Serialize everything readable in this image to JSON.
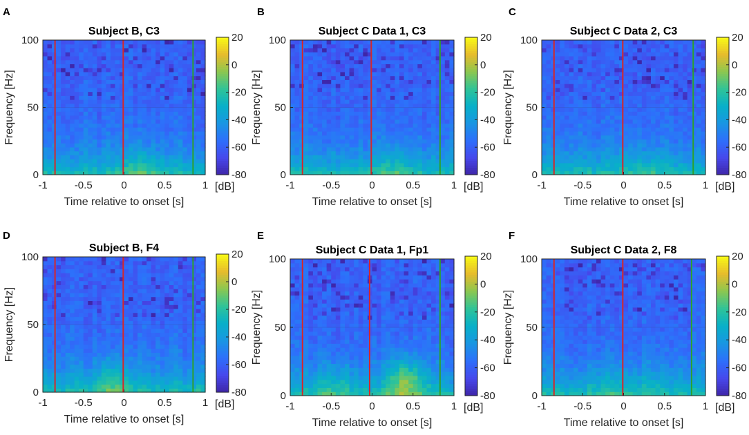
{
  "figure": {
    "colormap": "parula",
    "colors": {
      "onset_line": "#d62728",
      "offset_line": "#2ca02c",
      "axis": "#262626"
    }
  },
  "chart_data": [
    {
      "type": "heatmap",
      "panel": "A",
      "title": "Subject B, C3",
      "xlabel": "Time relative to onset [s]",
      "ylabel": "Frequency [Hz]",
      "xlim": [
        -1,
        1
      ],
      "ylim": [
        0,
        100
      ],
      "xticks": [
        "-1",
        "-0.5",
        "0",
        "0.5",
        "1"
      ],
      "yticks": [
        "0",
        "50",
        "100"
      ],
      "colorbar": {
        "ticks": [
          "20",
          "0",
          "-20",
          "-40",
          "-60",
          "-80"
        ],
        "unit": "[dB]",
        "range": [
          -80,
          20
        ]
      },
      "markers": {
        "red_lines": [
          -0.85,
          -0.01
        ],
        "green_line": 0.85
      },
      "hotspots": [
        {
          "t": 0.2,
          "f": 5,
          "db": -18
        }
      ]
    },
    {
      "type": "heatmap",
      "panel": "B",
      "title": "Subject C Data 1, C3",
      "xlabel": "Time relative to onset [s]",
      "ylabel": "Frequency [Hz]",
      "xlim": [
        -1,
        1
      ],
      "ylim": [
        0,
        100
      ],
      "xticks": [
        "-1",
        "-0.5",
        "0",
        "0.5",
        "1"
      ],
      "yticks": [
        "0",
        "50",
        "100"
      ],
      "colorbar": {
        "ticks": [
          "20",
          "0",
          "-20",
          "-40",
          "-60",
          "-80"
        ],
        "unit": "[dB]",
        "range": [
          -80,
          20
        ]
      },
      "markers": {
        "red_lines": [
          -0.85,
          -0.01
        ],
        "green_line": 0.83
      },
      "hotspots": [
        {
          "t": 0.28,
          "f": 5,
          "db": -20
        }
      ]
    },
    {
      "type": "heatmap",
      "panel": "C",
      "title": "Subject C Data 2, C3",
      "xlabel": "Time relative to onset [s]",
      "ylabel": "Frequency [Hz]",
      "xlim": [
        -1,
        1
      ],
      "ylim": [
        0,
        100
      ],
      "xticks": [
        "-1",
        "-0.5",
        "0",
        "0.5",
        "1"
      ],
      "yticks": [
        "0",
        "50",
        "100"
      ],
      "colorbar": {
        "ticks": [
          "20",
          "0",
          "-20",
          "-40",
          "-60",
          "-80"
        ],
        "unit": "[dB]",
        "range": [
          -80,
          20
        ]
      },
      "markers": {
        "red_lines": [
          -0.85,
          -0.01
        ],
        "green_line": 0.85
      },
      "hotspots": [
        {
          "t": 0.25,
          "f": 5,
          "db": -22
        }
      ]
    },
    {
      "type": "heatmap",
      "panel": "D",
      "title": "Subject B, F4",
      "xlabel": "Time relative to onset [s]",
      "ylabel": "Frequency [Hz]",
      "xlim": [
        -1,
        1
      ],
      "ylim": [
        0,
        100
      ],
      "xticks": [
        "-1",
        "-0.5",
        "0",
        "0.5",
        "1"
      ],
      "yticks": [
        "0",
        "50",
        "100"
      ],
      "colorbar": {
        "ticks": [
          "20",
          "0",
          "-20",
          "-40",
          "-60",
          "-80"
        ],
        "unit": "[dB]",
        "range": [
          -80,
          20
        ]
      },
      "markers": {
        "red_lines": [
          -0.85,
          -0.01
        ],
        "green_line": 0.85
      },
      "hotspots": [
        {
          "t": -0.15,
          "f": 8,
          "db": -14
        }
      ]
    },
    {
      "type": "heatmap",
      "panel": "E",
      "title": "Subject C Data 1, Fp1",
      "xlabel": "Time relative to onset [s]",
      "ylabel": "Frequency [Hz]",
      "xlim": [
        -1,
        1
      ],
      "ylim": [
        0,
        100
      ],
      "xticks": [
        "-1",
        "-0.5",
        "0",
        "0.5",
        "1"
      ],
      "yticks": [
        "0",
        "50",
        "100"
      ],
      "colorbar": {
        "ticks": [
          "20",
          "0",
          "-20",
          "-40",
          "-60",
          "-80"
        ],
        "unit": "[dB]",
        "range": [
          -80,
          20
        ]
      },
      "markers": {
        "red_lines": [
          -0.85,
          -0.03
        ],
        "green_line": 0.83
      },
      "hotspots": [
        {
          "t": 0.4,
          "f": 12,
          "db": 2
        },
        {
          "t": -0.45,
          "f": 8,
          "db": -18
        }
      ]
    },
    {
      "type": "heatmap",
      "panel": "F",
      "title": "Subject C Data 2, F8",
      "xlabel": "Time relative to onset [s]",
      "ylabel": "Frequency [Hz]",
      "xlim": [
        -1,
        1
      ],
      "ylim": [
        0,
        100
      ],
      "xticks": [
        "-1",
        "-0.5",
        "0",
        "0.5",
        "1"
      ],
      "yticks": [
        "0",
        "50",
        "100"
      ],
      "colorbar": {
        "ticks": [
          "20",
          "0",
          "-20",
          "-40",
          "-60",
          "-80"
        ],
        "unit": "[dB]",
        "range": [
          -80,
          20
        ]
      },
      "markers": {
        "red_lines": [
          -0.85,
          -0.01
        ],
        "green_line": 0.83
      },
      "hotspots": [
        {
          "t": -0.2,
          "f": 8,
          "db": -22
        },
        {
          "t": 0.3,
          "f": 8,
          "db": -24
        }
      ]
    }
  ]
}
